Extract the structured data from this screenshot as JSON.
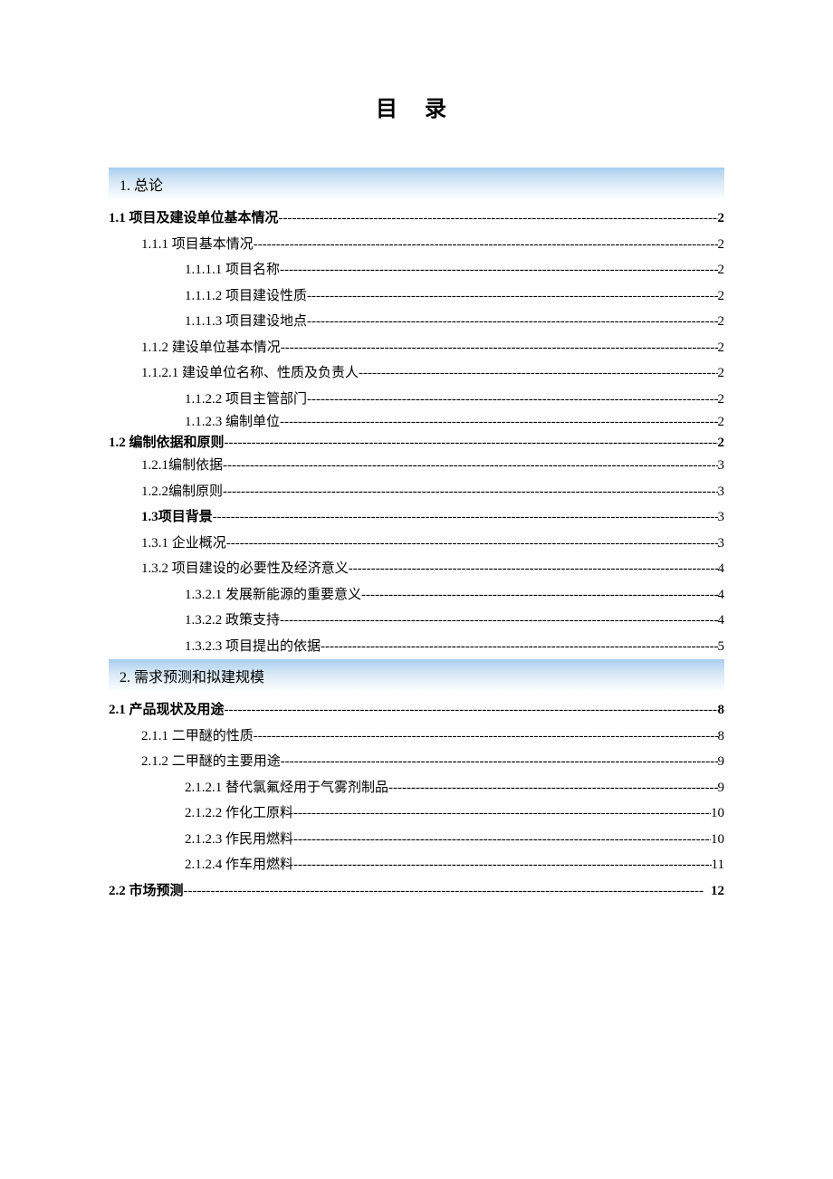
{
  "title": "目  录",
  "sections": [
    {
      "header": "1.  总论",
      "entries": [
        {
          "indent": 0,
          "bold": true,
          "label": "1.1 项目及建设单位基本情况",
          "page": "2"
        },
        {
          "indent": 1,
          "bold": false,
          "label": "1.1.1 项目基本情况",
          "page": "2"
        },
        {
          "indent": 2,
          "bold": false,
          "label": "1.1.1.1 项目名称",
          "page": "2"
        },
        {
          "indent": 2,
          "bold": false,
          "label": "1.1.1.2 项目建设性质",
          "page": "2"
        },
        {
          "indent": 2,
          "bold": false,
          "label": "1.1.1.3 项目建设地点",
          "page": "2"
        },
        {
          "indent": 1,
          "bold": false,
          "label": "1.1.2 建设单位基本情况",
          "page": "2"
        },
        {
          "indent": 1,
          "bold": false,
          "label": "1.1.2.1 建设单位名称、性质及负责人",
          "page": "2"
        },
        {
          "indent": 2,
          "bold": false,
          "label": "1.1.2.2 项目主管部门",
          "page": "2"
        },
        {
          "indent": 2,
          "bold": false,
          "label": "1.1.2.3 编制单位",
          "page": "2",
          "tight": true
        },
        {
          "indent": 0,
          "bold": true,
          "label": "1.2 编制依据和原则",
          "page": "2",
          "tight": true
        },
        {
          "indent": 1,
          "bold": false,
          "label": "1.2.1编制依据",
          "page": "3"
        },
        {
          "indent": 1,
          "bold": false,
          "label": "1.2.2编制原则",
          "page": "3"
        },
        {
          "indent": 1,
          "bold": true,
          "label": "1.3项目背景",
          "page": "3",
          "pagebold": false
        },
        {
          "indent": 1,
          "bold": false,
          "label": "1.3.1 企业概况",
          "page": "3"
        },
        {
          "indent": 1,
          "bold": false,
          "label": "1.3.2 项目建设的必要性及经济意义",
          "page": "4"
        },
        {
          "indent": 2,
          "bold": false,
          "label": "1.3.2.1 发展新能源的重要意义",
          "page": "4"
        },
        {
          "indent": 2,
          "bold": false,
          "label": "1.3.2.2 政策支持",
          "page": "4"
        },
        {
          "indent": 2,
          "bold": false,
          "label": "1.3.2.3 项目提出的依据",
          "page": "5"
        }
      ]
    },
    {
      "header": "2.  需求预测和拟建规模",
      "entries": [
        {
          "indent": 0,
          "bold": true,
          "label": "2.1 产品现状及用途",
          "page": "8"
        },
        {
          "indent": 1,
          "bold": false,
          "label": "2.1.1 二甲醚的性质",
          "page": "8"
        },
        {
          "indent": 1,
          "bold": false,
          "label": "2.1.2 二甲醚的主要用途",
          "page": "9"
        },
        {
          "indent": 2,
          "bold": false,
          "label": "2.1.2.1 替代氯氟烃用于气雾剂制品",
          "page": "9"
        },
        {
          "indent": 2,
          "bold": false,
          "label": "2.1.2.2 作化工原料",
          "page": "10"
        },
        {
          "indent": 2,
          "bold": false,
          "label": "2.1.2.3 作民用燃料",
          "page": "10"
        },
        {
          "indent": 2,
          "bold": false,
          "label": "2.1.2.4 作车用燃料",
          "page": "11"
        },
        {
          "indent": 0,
          "bold": true,
          "label": "2.2 市场预测",
          "page": "12"
        }
      ]
    }
  ]
}
